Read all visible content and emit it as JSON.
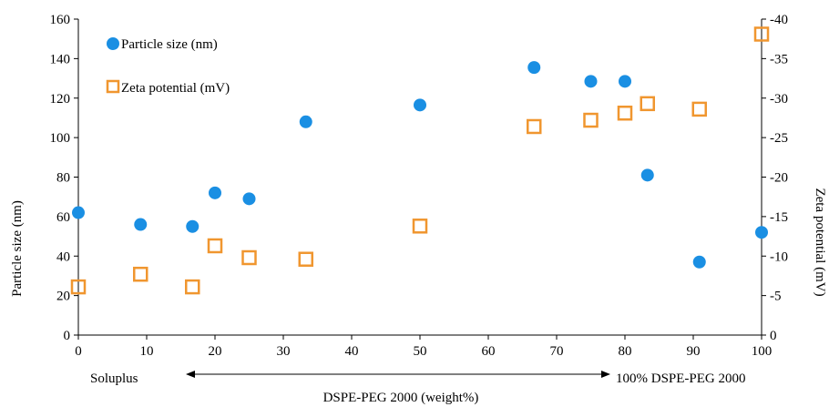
{
  "chart_data": {
    "type": "scatter",
    "title": "",
    "xlabel": "DSPE-PEG 2000 (weight%)",
    "ylabel_left": "Particle size (nm)",
    "ylabel_right": "Zeta potential (mV)",
    "xlim": [
      0,
      100
    ],
    "ylim_left": [
      0,
      160
    ],
    "ylim_right": [
      0,
      -40
    ],
    "x_ticks": [
      "0",
      "10",
      "20",
      "30",
      "40",
      "50",
      "60",
      "70",
      "80",
      "90",
      "100"
    ],
    "y_left_ticks": [
      "0",
      "20",
      "40",
      "60",
      "80",
      "100",
      "120",
      "140",
      "160"
    ],
    "y_right_ticks": [
      "0",
      "-5",
      "-10",
      "-15",
      "-20",
      "-25",
      "-30",
      "-35",
      "-40"
    ],
    "grid": false,
    "legend_position": "top-left",
    "series": [
      {
        "name": "Particle size (nm)",
        "axis": "left",
        "marker": "filled-circle",
        "color": "#1a8fe3",
        "x": [
          0,
          9.1,
          16.7,
          20,
          25,
          33.3,
          50,
          66.7,
          75,
          80,
          83.3,
          90.9,
          100
        ],
        "y": [
          62,
          56,
          55,
          72,
          69,
          108,
          116.5,
          135.5,
          128.5,
          128.5,
          81,
          37,
          52
        ]
      },
      {
        "name": "Zeta potential (mV)",
        "axis": "right",
        "marker": "open-square",
        "color": "#f0962f",
        "x": [
          0,
          9.1,
          16.7,
          20,
          25,
          33.3,
          50,
          66.7,
          75,
          80,
          83.3,
          90.9,
          100
        ],
        "y": [
          -6.1,
          -7.7,
          -6.1,
          -11.3,
          -9.8,
          -9.6,
          -13.8,
          -26.4,
          -27.2,
          -28.1,
          -29.3,
          -28.6,
          -38.1
        ]
      }
    ],
    "annotations": {
      "left_label": "Soluplus",
      "right_label": "100% DSPE-PEG 2000"
    }
  }
}
